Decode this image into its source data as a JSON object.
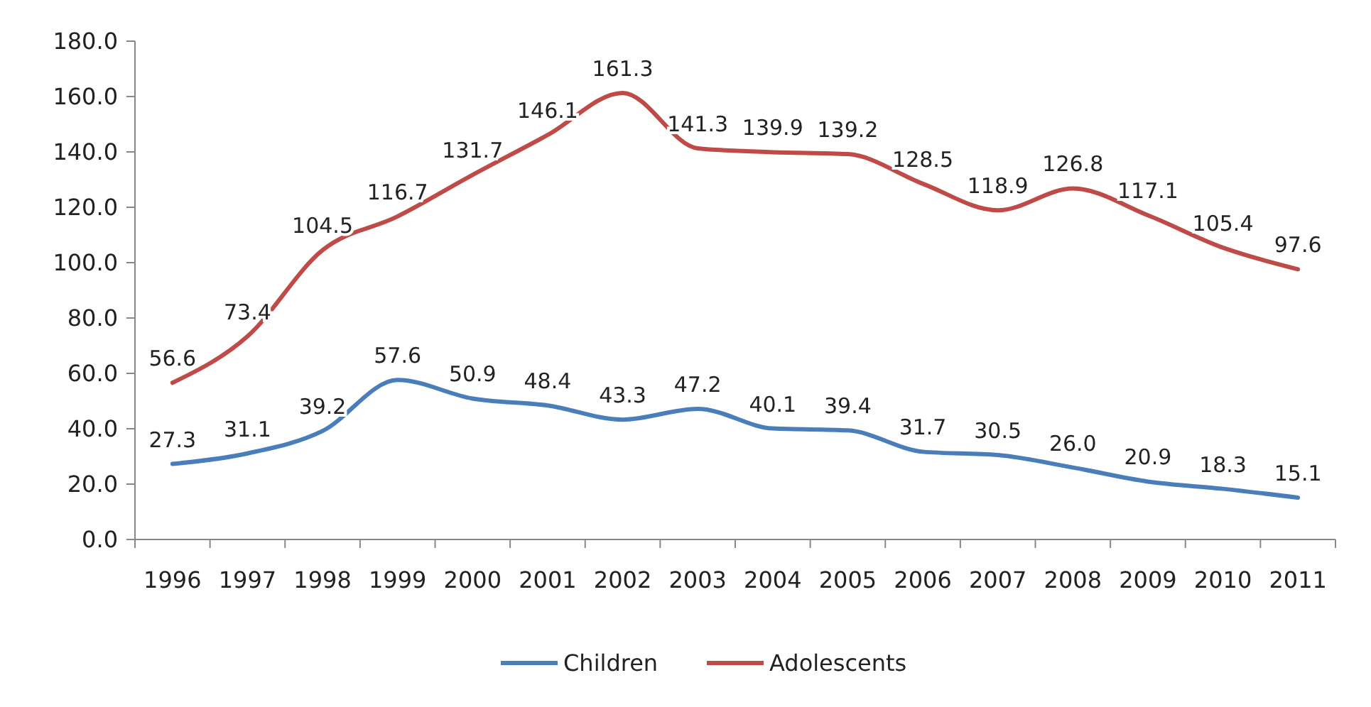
{
  "chart_data": {
    "type": "line",
    "categories": [
      "1996",
      "1997",
      "1998",
      "1999",
      "2000",
      "2001",
      "2002",
      "2003",
      "2004",
      "2005",
      "2006",
      "2007",
      "2008",
      "2009",
      "2010",
      "2011"
    ],
    "series": [
      {
        "name": "Children",
        "color": "#4a7ebb",
        "values": [
          27.3,
          31.1,
          39.2,
          57.6,
          50.9,
          48.4,
          43.3,
          47.2,
          40.1,
          39.4,
          31.7,
          30.5,
          26.0,
          20.9,
          18.3,
          15.1
        ],
        "value_labels": [
          "27.3",
          "31.1",
          "39.2",
          "57.6",
          "50.9",
          "48.4",
          "43.3",
          "47.2",
          "40.1",
          "39.4",
          "31.7",
          "30.5",
          "26.0",
          "20.9",
          "18.3",
          "15.1"
        ]
      },
      {
        "name": "Adolescents",
        "color": "#be4b48",
        "values": [
          56.6,
          73.4,
          104.5,
          116.7,
          131.7,
          146.1,
          161.3,
          141.3,
          139.9,
          139.2,
          128.5,
          118.9,
          126.8,
          117.1,
          105.4,
          97.6
        ],
        "value_labels": [
          "56.6",
          "73.4",
          "104.5",
          "116.7",
          "131.7",
          "146.1",
          "161.3",
          "141.3",
          "139.9",
          "139.2",
          "128.5",
          "118.9",
          "126.8",
          "117.1",
          "105.4",
          "97.6"
        ]
      }
    ],
    "ylim": [
      0,
      180
    ],
    "yticks": [
      {
        "value": 0,
        "label": "0.0"
      },
      {
        "value": 20,
        "label": "20.0"
      },
      {
        "value": 40,
        "label": "40.0"
      },
      {
        "value": 60,
        "label": "60.0"
      },
      {
        "value": 80,
        "label": "80.0"
      },
      {
        "value": 100,
        "label": "100.0"
      },
      {
        "value": 120,
        "label": "120.0"
      },
      {
        "value": 140,
        "label": "140.0"
      },
      {
        "value": 160,
        "label": "160.0"
      },
      {
        "value": 180,
        "label": "180.0"
      }
    ],
    "grid": false,
    "legend": "bottom",
    "marker": "none",
    "line_style": "solid"
  }
}
